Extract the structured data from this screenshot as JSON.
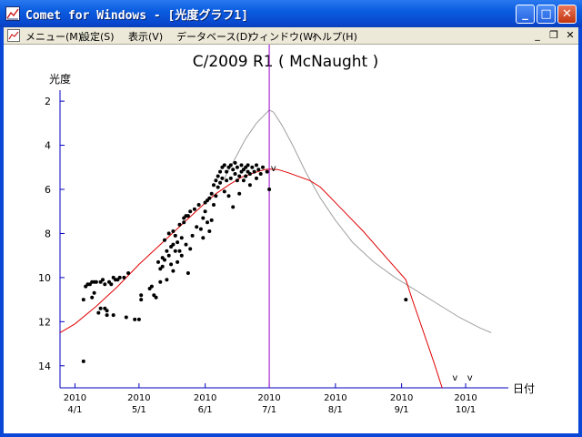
{
  "window": {
    "title": "Comet for Windows - [光度グラフ1]",
    "buttons": {
      "minimize": "_",
      "maximize": "□",
      "close": "✕"
    }
  },
  "menu": {
    "items": [
      "メニュー(M)",
      "設定(S)",
      "表示(V)",
      "データベース(D)",
      "ウィンドウ(W)",
      "ヘルプ(H)"
    ],
    "mdi_buttons": [
      "_",
      "❐",
      "✕"
    ]
  },
  "chart_data": {
    "type": "scatter",
    "title": "C/2009 R1 ( McNaught )",
    "ylabel": "光度",
    "xlabel": "日付",
    "ylim": [
      15,
      1.5
    ],
    "y_ticks": [
      2,
      4,
      6,
      8,
      10,
      12,
      14
    ],
    "x_ticks": [
      {
        "line1": "2010",
        "line2": "4/1",
        "day": 0
      },
      {
        "line1": "2010",
        "line2": "5/1",
        "day": 30
      },
      {
        "line1": "2010",
        "line2": "6/1",
        "day": 61
      },
      {
        "line1": "2010",
        "line2": "7/1",
        "day": 91
      },
      {
        "line1": "2010",
        "line2": "8/1",
        "day": 122
      },
      {
        "line1": "2010",
        "line2": "9/1",
        "day": 153
      },
      {
        "line1": "2010",
        "line2": "10/1",
        "day": 183
      }
    ],
    "xlim_days": [
      -7,
      203
    ],
    "current_date_marker_day": 91,
    "series": [
      {
        "color": "#a0a0a0",
        "points": [
          [
            70,
            5.5
          ],
          [
            75,
            4.6
          ],
          [
            80,
            3.7
          ],
          [
            85,
            3.0
          ],
          [
            89,
            2.6
          ],
          [
            91,
            2.4
          ],
          [
            93,
            2.5
          ],
          [
            97,
            3.1
          ],
          [
            102,
            4.0
          ],
          [
            108,
            5.2
          ],
          [
            115,
            6.4
          ],
          [
            122,
            7.4
          ],
          [
            130,
            8.4
          ],
          [
            140,
            9.3
          ],
          [
            150,
            10.0
          ],
          [
            160,
            10.6
          ],
          [
            170,
            11.2
          ],
          [
            180,
            11.8
          ],
          [
            190,
            12.3
          ],
          [
            195,
            12.5
          ]
        ]
      },
      {
        "color": "#e00000",
        "points": [
          [
            -7,
            12.5
          ],
          [
            0,
            12.1
          ],
          [
            10,
            11.3
          ],
          [
            20,
            10.4
          ],
          [
            30,
            9.4
          ],
          [
            40,
            8.5
          ],
          [
            50,
            7.6
          ],
          [
            60,
            6.7
          ],
          [
            66,
            6.2
          ],
          [
            72,
            5.8
          ],
          [
            78,
            5.45
          ],
          [
            84,
            5.25
          ],
          [
            89,
            5.1
          ],
          [
            91,
            5.08
          ],
          [
            95,
            5.1
          ],
          [
            100,
            5.25
          ],
          [
            110,
            5.6
          ],
          [
            115,
            5.9
          ],
          [
            125,
            6.9
          ],
          [
            135,
            7.9
          ],
          [
            145,
            9.0
          ],
          [
            155,
            10.1
          ],
          [
            158,
            11.0
          ],
          [
            163,
            12.4
          ],
          [
            168,
            13.8
          ],
          [
            172,
            15.0
          ]
        ]
      }
    ],
    "observations": [
      [
        4,
        11.0
      ],
      [
        4,
        13.8
      ],
      [
        5,
        10.4
      ],
      [
        6,
        10.3
      ],
      [
        7,
        10.3
      ],
      [
        8,
        10.2
      ],
      [
        8,
        10.9
      ],
      [
        9,
        10.7
      ],
      [
        9,
        10.2
      ],
      [
        10,
        10.2
      ],
      [
        11,
        11.6
      ],
      [
        12,
        10.2
      ],
      [
        12,
        11.4
      ],
      [
        13,
        10.1
      ],
      [
        14,
        11.4
      ],
      [
        14,
        10.3
      ],
      [
        15,
        11.5
      ],
      [
        15,
        11.7
      ],
      [
        16,
        10.2
      ],
      [
        17,
        10.3
      ],
      [
        18,
        10.0
      ],
      [
        18,
        11.7
      ],
      [
        19,
        10.1
      ],
      [
        20,
        10.1
      ],
      [
        21,
        10.0
      ],
      [
        23,
        10.0
      ],
      [
        24,
        11.8
      ],
      [
        25,
        9.8
      ],
      [
        28,
        11.9
      ],
      [
        30,
        11.9
      ],
      [
        31,
        10.8
      ],
      [
        31,
        11.0
      ],
      [
        35,
        10.5
      ],
      [
        36,
        10.4
      ],
      [
        37,
        10.8
      ],
      [
        38,
        10.9
      ],
      [
        39,
        9.3
      ],
      [
        40,
        9.6
      ],
      [
        40,
        10.2
      ],
      [
        41,
        9.1
      ],
      [
        41,
        9.5
      ],
      [
        42,
        8.3
      ],
      [
        42,
        9.2
      ],
      [
        43,
        10.1
      ],
      [
        43,
        8.8
      ],
      [
        44,
        9.0
      ],
      [
        44,
        8.0
      ],
      [
        45,
        9.4
      ],
      [
        45,
        8.6
      ],
      [
        46,
        8.5
      ],
      [
        46,
        7.9
      ],
      [
        46,
        9.7
      ],
      [
        47,
        8.8
      ],
      [
        47,
        8.1
      ],
      [
        48,
        8.4
      ],
      [
        48,
        9.3
      ],
      [
        49,
        7.6
      ],
      [
        49,
        8.8
      ],
      [
        50,
        8.2
      ],
      [
        50,
        9.0
      ],
      [
        51,
        7.5
      ],
      [
        51,
        7.3
      ],
      [
        52,
        8.5
      ],
      [
        52,
        7.2
      ],
      [
        53,
        9.8
      ],
      [
        53,
        7.2
      ],
      [
        54,
        8.7
      ],
      [
        54,
        7.0
      ],
      [
        55,
        8.1
      ],
      [
        56,
        6.9
      ],
      [
        57,
        7.7
      ],
      [
        58,
        6.7
      ],
      [
        59,
        7.8
      ],
      [
        60,
        8.2
      ],
      [
        60,
        7.3
      ],
      [
        61,
        7.0
      ],
      [
        61,
        6.6
      ],
      [
        62,
        6.5
      ],
      [
        62,
        7.5
      ],
      [
        63,
        6.4
      ],
      [
        63,
        7.9
      ],
      [
        64,
        6.2
      ],
      [
        64,
        7.4
      ],
      [
        65,
        5.8
      ],
      [
        65,
        6.7
      ],
      [
        66,
        5.6
      ],
      [
        66,
        6.3
      ],
      [
        67,
        5.4
      ],
      [
        67,
        5.9
      ],
      [
        68,
        5.2
      ],
      [
        68,
        5.7
      ],
      [
        69,
        5.0
      ],
      [
        69,
        5.5
      ],
      [
        70,
        4.9
      ],
      [
        70,
        6.1
      ],
      [
        71,
        5.2
      ],
      [
        71,
        5.6
      ],
      [
        72,
        5.0
      ],
      [
        72,
        6.3
      ],
      [
        73,
        4.9
      ],
      [
        73,
        5.5
      ],
      [
        74,
        5.1
      ],
      [
        74,
        6.8
      ],
      [
        75,
        4.8
      ],
      [
        75,
        5.3
      ],
      [
        76,
        5.6
      ],
      [
        76,
        5.0
      ],
      [
        77,
        5.4
      ],
      [
        77,
        6.2
      ],
      [
        78,
        5.2
      ],
      [
        78,
        4.9
      ],
      [
        79,
        5.6
      ],
      [
        79,
        5.1
      ],
      [
        80,
        5.0
      ],
      [
        80,
        5.4
      ],
      [
        81,
        5.2
      ],
      [
        81,
        4.9
      ],
      [
        82,
        5.3
      ],
      [
        82,
        5.8
      ],
      [
        83,
        5.0
      ],
      [
        84,
        5.2
      ],
      [
        85,
        4.9
      ],
      [
        85,
        5.5
      ],
      [
        86,
        5.1
      ],
      [
        87,
        5.3
      ],
      [
        88,
        5.0
      ],
      [
        90,
        5.2
      ],
      [
        91,
        6.0
      ],
      [
        155,
        11.0
      ]
    ],
    "upper_limit_marks": [
      {
        "day": 93,
        "mag": 5.0
      },
      {
        "day": 178,
        "mag": 14.5
      },
      {
        "day": 185,
        "mag": 14.5
      }
    ],
    "upper_limit_symbol": "v"
  }
}
